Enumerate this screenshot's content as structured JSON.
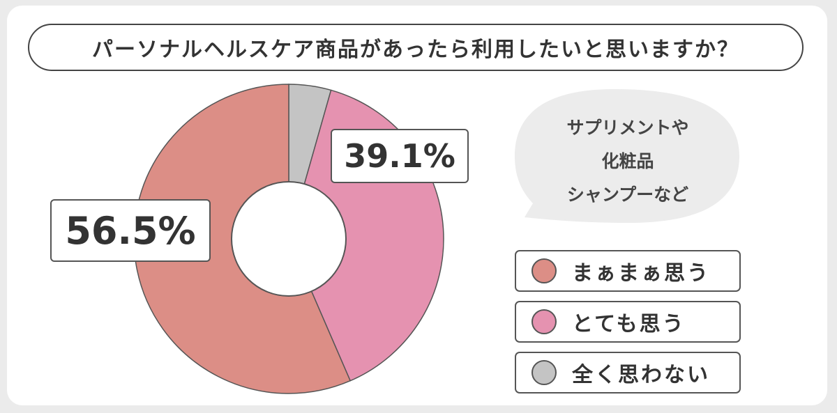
{
  "title": "パーソナルヘルスケア商品があったら利用したいと思いますか？",
  "bubble": {
    "line1": "サプリメントや",
    "line2": "化粧品",
    "line3": "シャンプーなど"
  },
  "colors": {
    "card_bg": "#ffffff",
    "page_bg": "#ebebeb",
    "bubble_bg": "#ececec",
    "stroke": "#555555"
  },
  "chart_data": {
    "type": "pie",
    "donut": true,
    "start": "12 o'clock, clockwise",
    "slices": [
      {
        "label": "全く思わない",
        "value": 4.4,
        "color": "#c4c4c4"
      },
      {
        "label": "とても思う",
        "value": 39.1,
        "color": "#e592b0",
        "data_label": "39.1%"
      },
      {
        "label": "まぁまぁ思う",
        "value": 56.5,
        "color": "#dc8e86",
        "data_label": "56.5%"
      }
    ],
    "legend": [
      {
        "label": "まぁまぁ思う",
        "color": "#dc8e86"
      },
      {
        "label": "とても思う",
        "color": "#e592b0"
      },
      {
        "label": "全く思わない",
        "color": "#c4c4c4"
      }
    ],
    "legend_position": "right"
  }
}
